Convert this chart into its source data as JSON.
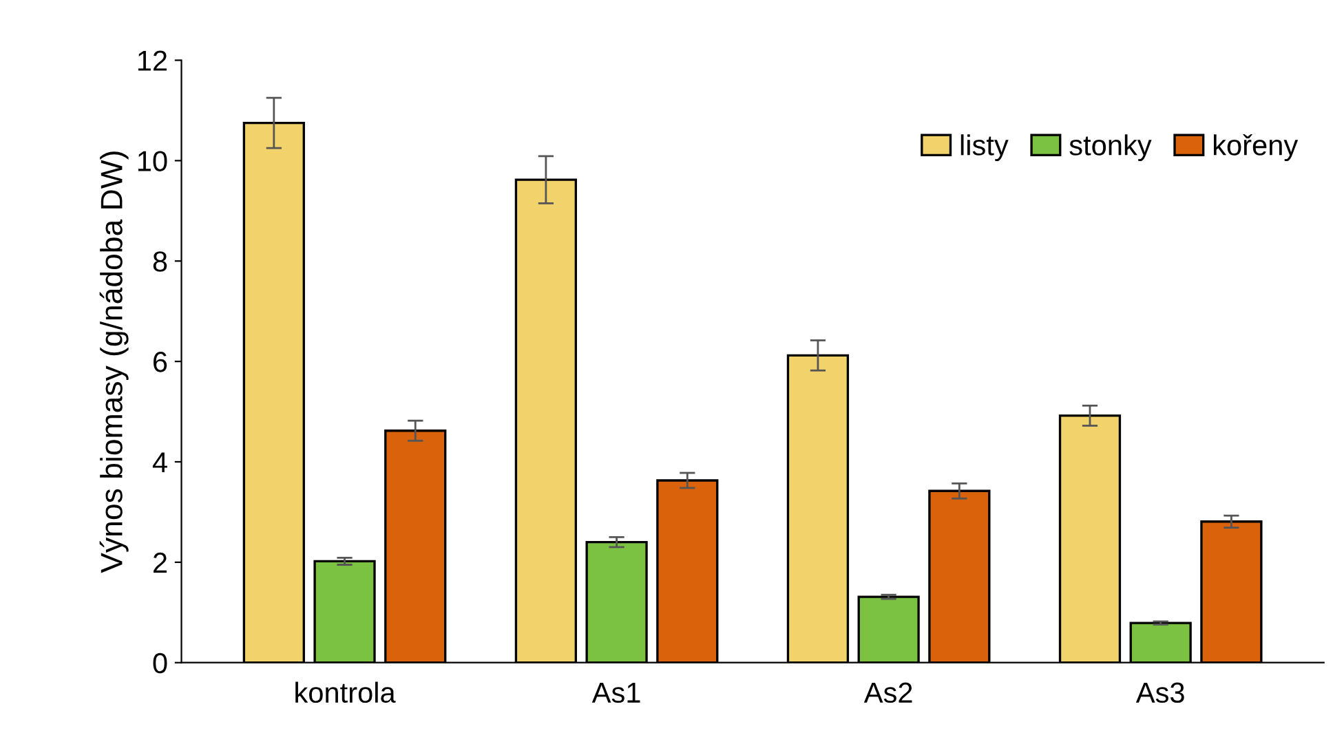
{
  "chart_data": {
    "type": "bar",
    "ylabel": "Výnos biomasy (g/nádoba DW)",
    "categories": [
      "kontrola",
      "As1",
      "As2",
      "As3"
    ],
    "series": [
      {
        "name": "listy",
        "color": "#f2d36b",
        "values": [
          10.75,
          9.62,
          6.12,
          4.92
        ],
        "errors": [
          0.5,
          0.47,
          0.3,
          0.2
        ]
      },
      {
        "name": "stonky",
        "color": "#7cc242",
        "values": [
          2.02,
          2.4,
          1.31,
          0.79
        ],
        "errors": [
          0.07,
          0.1,
          0.04,
          0.03
        ]
      },
      {
        "name": "kořeny",
        "color": "#d9620a",
        "values": [
          4.62,
          3.63,
          3.42,
          2.81
        ],
        "errors": [
          0.2,
          0.15,
          0.15,
          0.12
        ]
      }
    ],
    "ylim": [
      0,
      12
    ],
    "yticks": [
      0,
      2,
      4,
      6,
      8,
      10,
      12
    ],
    "grid": false,
    "legend": "top right"
  }
}
